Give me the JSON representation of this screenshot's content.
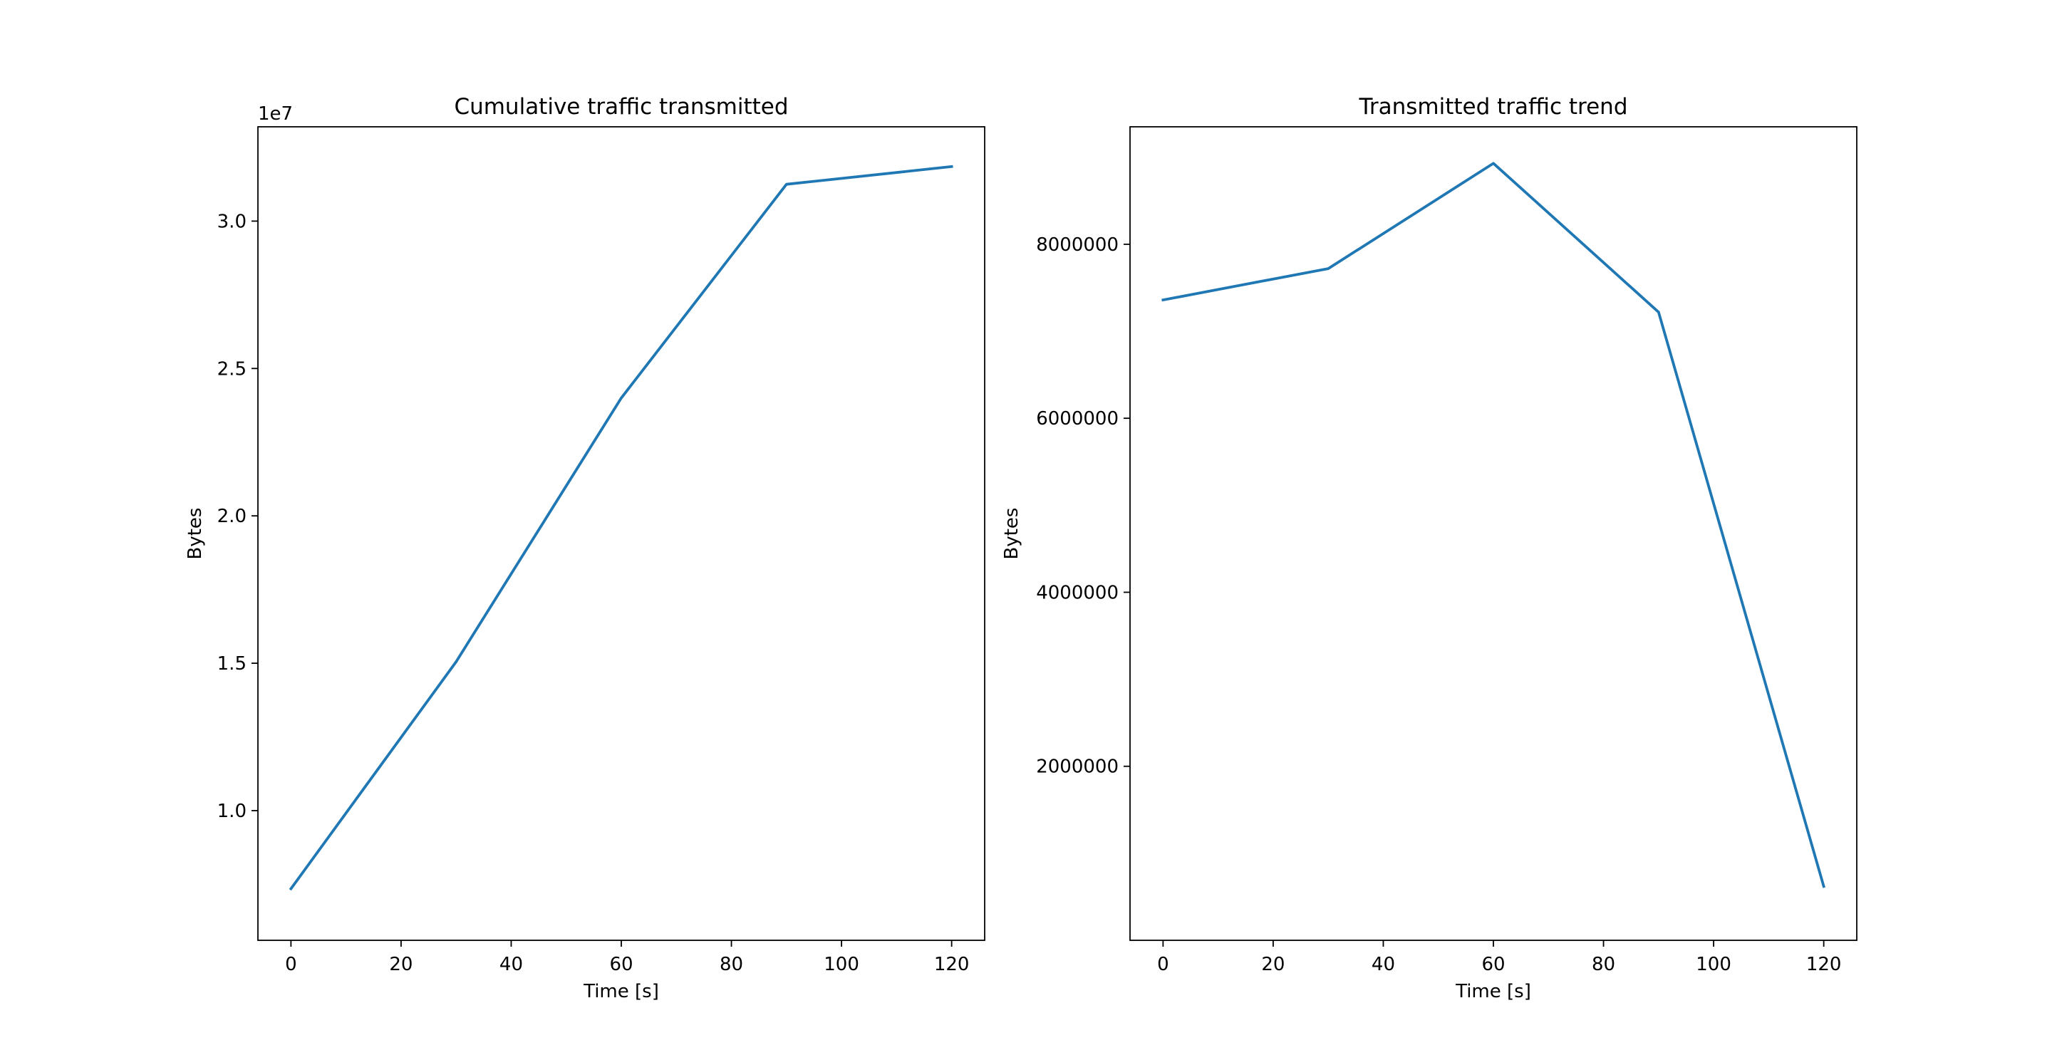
{
  "colors": {
    "series": "#1f77b4"
  },
  "chart_data": [
    {
      "type": "line",
      "title": "Cumulative traffic transmitted",
      "xlabel": "Time [s]",
      "ylabel": "Bytes",
      "y_offset_label": "1e7",
      "x": [
        0,
        30,
        60,
        90,
        120
      ],
      "series": [
        {
          "values": [
            7.35,
            15.05,
            24.0,
            31.25,
            31.85
          ]
        }
      ],
      "xlim": [
        -6,
        126
      ],
      "ylim": [
        5.6,
        33.2
      ],
      "xticks": [
        0,
        20,
        40,
        60,
        80,
        100,
        120
      ],
      "xtick_labels": [
        "0",
        "20",
        "40",
        "60",
        "80",
        "100",
        "120"
      ],
      "yticks": [
        10,
        15,
        20,
        25,
        30
      ],
      "ytick_labels": [
        "1.0",
        "1.5",
        "2.0",
        "2.5",
        "3.0"
      ],
      "grid": false
    },
    {
      "type": "line",
      "title": "Transmitted traffic trend",
      "xlabel": "Time [s]",
      "ylabel": "Bytes",
      "x": [
        0,
        30,
        60,
        90,
        120
      ],
      "series": [
        {
          "values": [
            7360000,
            7720000,
            8930000,
            7220000,
            620000
          ]
        }
      ],
      "xlim": [
        -6,
        126
      ],
      "ylim": [
        0,
        9350000
      ],
      "xticks": [
        0,
        20,
        40,
        60,
        80,
        100,
        120
      ],
      "xtick_labels": [
        "0",
        "20",
        "40",
        "60",
        "80",
        "100",
        "120"
      ],
      "yticks": [
        2000000,
        4000000,
        6000000,
        8000000
      ],
      "ytick_labels": [
        "2000000",
        "4000000",
        "6000000",
        "8000000"
      ],
      "grid": false
    }
  ]
}
